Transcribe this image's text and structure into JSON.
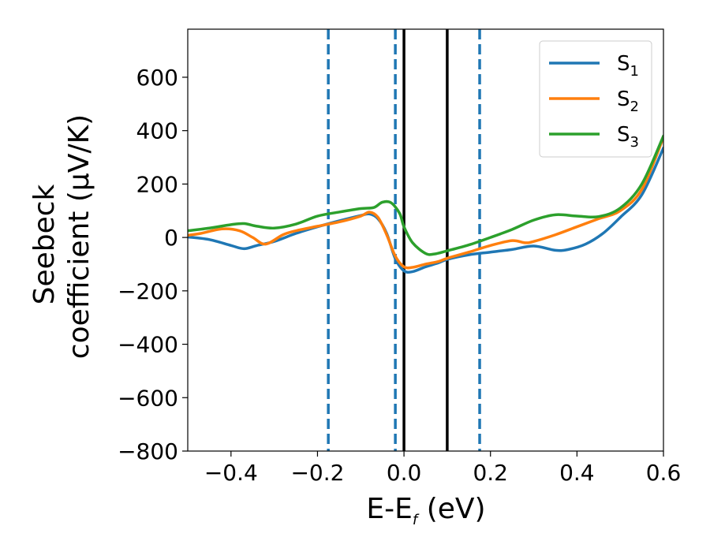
{
  "chart_data": {
    "type": "line",
    "xlabel": "E-E",
    "xlabel_sub": "f",
    "xlabel_unit": " (eV)",
    "ylabel_line1": "Seebeck",
    "ylabel_line2": "coefficient  (μV/K)",
    "xlim": [
      -0.5,
      0.6
    ],
    "ylim": [
      -800,
      780
    ],
    "xticks": [
      -0.4,
      -0.2,
      0.0,
      0.2,
      0.4,
      0.6
    ],
    "xtick_labels": [
      "−0.4",
      "−0.2",
      "0.0",
      "0.2",
      "0.4",
      "0.6"
    ],
    "yticks": [
      -800,
      -600,
      -400,
      -200,
      0,
      200,
      400,
      600
    ],
    "ytick_labels": [
      "−800",
      "−600",
      "−400",
      "−200",
      "0",
      "200",
      "400",
      "600"
    ],
    "grid": false,
    "legend_position": "top-right",
    "vlines": [
      {
        "x": -0.175,
        "style": "dashed",
        "color": "#1f77b4"
      },
      {
        "x": -0.02,
        "style": "dashed",
        "color": "#1f77b4"
      },
      {
        "x": 0.175,
        "style": "dashed",
        "color": "#1f77b4"
      },
      {
        "x": 0.0,
        "style": "solid",
        "color": "#000000"
      },
      {
        "x": 0.1,
        "style": "solid",
        "color": "#000000"
      }
    ],
    "series": [
      {
        "name": "S",
        "sub": "1",
        "color": "#1f77b4",
        "points": [
          [
            -0.5,
            2
          ],
          [
            -0.45,
            -8
          ],
          [
            -0.4,
            -30
          ],
          [
            -0.37,
            -42
          ],
          [
            -0.34,
            -30
          ],
          [
            -0.3,
            -15
          ],
          [
            -0.25,
            15
          ],
          [
            -0.2,
            40
          ],
          [
            -0.15,
            62
          ],
          [
            -0.1,
            82
          ],
          [
            -0.08,
            88
          ],
          [
            -0.06,
            70
          ],
          [
            -0.04,
            15
          ],
          [
            -0.02,
            -80
          ],
          [
            0.0,
            -125
          ],
          [
            0.02,
            -128
          ],
          [
            0.05,
            -110
          ],
          [
            0.08,
            -95
          ],
          [
            0.1,
            -82
          ],
          [
            0.15,
            -65
          ],
          [
            0.2,
            -55
          ],
          [
            0.25,
            -45
          ],
          [
            0.3,
            -32
          ],
          [
            0.35,
            -48
          ],
          [
            0.38,
            -45
          ],
          [
            0.42,
            -25
          ],
          [
            0.46,
            15
          ],
          [
            0.5,
            75
          ],
          [
            0.55,
            160
          ],
          [
            0.6,
            335
          ]
        ]
      },
      {
        "name": "S",
        "sub": "2",
        "color": "#ff7f0e",
        "points": [
          [
            -0.5,
            8
          ],
          [
            -0.47,
            15
          ],
          [
            -0.42,
            32
          ],
          [
            -0.38,
            25
          ],
          [
            -0.35,
            0
          ],
          [
            -0.32,
            -25
          ],
          [
            -0.28,
            10
          ],
          [
            -0.25,
            25
          ],
          [
            -0.2,
            42
          ],
          [
            -0.15,
            58
          ],
          [
            -0.1,
            80
          ],
          [
            -0.08,
            95
          ],
          [
            -0.06,
            75
          ],
          [
            -0.04,
            10
          ],
          [
            -0.02,
            -70
          ],
          [
            0.0,
            -110
          ],
          [
            0.02,
            -112
          ],
          [
            0.05,
            -100
          ],
          [
            0.08,
            -90
          ],
          [
            0.1,
            -78
          ],
          [
            0.15,
            -55
          ],
          [
            0.2,
            -30
          ],
          [
            0.25,
            -12
          ],
          [
            0.28,
            -20
          ],
          [
            0.3,
            -15
          ],
          [
            0.35,
            10
          ],
          [
            0.4,
            40
          ],
          [
            0.45,
            70
          ],
          [
            0.5,
            100
          ],
          [
            0.55,
            180
          ],
          [
            0.6,
            375
          ]
        ]
      },
      {
        "name": "S",
        "sub": "3",
        "color": "#2ca02c",
        "points": [
          [
            -0.5,
            25
          ],
          [
            -0.45,
            35
          ],
          [
            -0.4,
            48
          ],
          [
            -0.37,
            52
          ],
          [
            -0.34,
            42
          ],
          [
            -0.3,
            35
          ],
          [
            -0.25,
            50
          ],
          [
            -0.2,
            80
          ],
          [
            -0.15,
            95
          ],
          [
            -0.1,
            108
          ],
          [
            -0.07,
            112
          ],
          [
            -0.05,
            132
          ],
          [
            -0.03,
            130
          ],
          [
            -0.01,
            90
          ],
          [
            0.0,
            40
          ],
          [
            0.02,
            -20
          ],
          [
            0.05,
            -60
          ],
          [
            0.07,
            -62
          ],
          [
            0.1,
            -50
          ],
          [
            0.15,
            -28
          ],
          [
            0.2,
            0
          ],
          [
            0.25,
            30
          ],
          [
            0.3,
            65
          ],
          [
            0.35,
            85
          ],
          [
            0.4,
            80
          ],
          [
            0.45,
            78
          ],
          [
            0.5,
            110
          ],
          [
            0.55,
            200
          ],
          [
            0.6,
            380
          ]
        ]
      }
    ]
  }
}
